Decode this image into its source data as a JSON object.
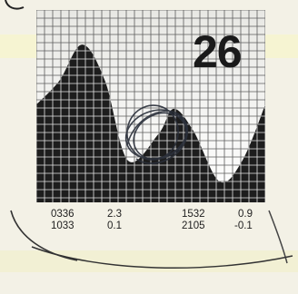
{
  "chart_data": {
    "type": "area",
    "title": "26",
    "series": [
      {
        "points": [
          [
            0,
            0.55
          ],
          [
            1.5,
            0.72
          ],
          [
            3.0,
            0.98
          ],
          [
            4.5,
            0.72
          ],
          [
            6.0,
            0.15
          ],
          [
            8.0,
            0.34
          ],
          [
            9.0,
            0.52
          ],
          [
            10.3,
            0.36
          ],
          [
            12.0,
            0.0
          ],
          [
            13.5,
            0.15
          ],
          [
            15.0,
            0.55
          ]
        ]
      }
    ],
    "tide_table": [
      {
        "time": "0336",
        "height": "2.3"
      },
      {
        "time": "1033",
        "height": "0.1"
      },
      {
        "time": "1532",
        "height": "0.9"
      },
      {
        "time": "2105",
        "height": "-0.1"
      }
    ],
    "grid": true,
    "colors": {
      "fill": "#1d1d1d",
      "grid_light": "#5c5c5c",
      "grid_dark": "#e6e6e6"
    }
  }
}
